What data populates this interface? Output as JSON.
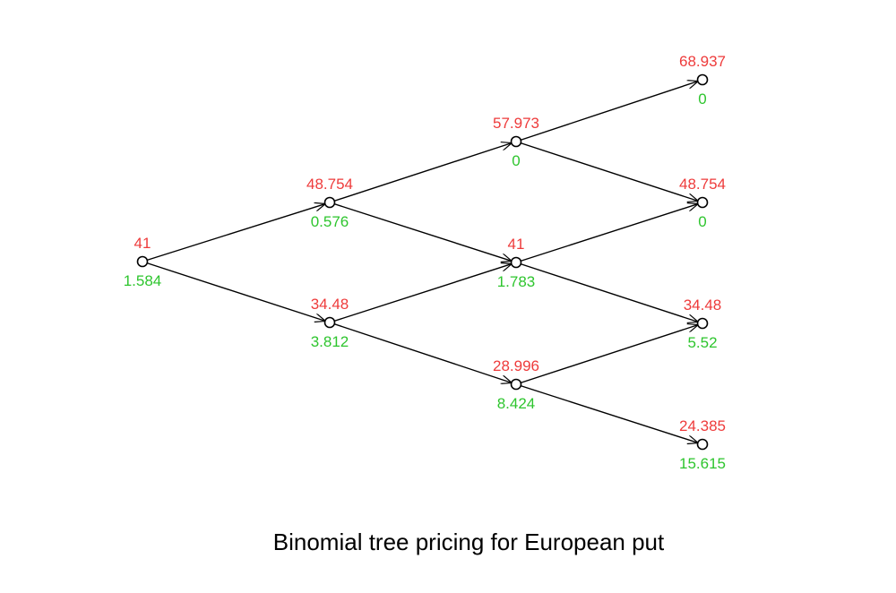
{
  "title": "Binomial tree pricing for European put",
  "colors": {
    "price": "#ee3b3b",
    "option_value": "#2ec52e",
    "line": "#000000",
    "node": "#000000"
  },
  "nodes": [
    {
      "id": "n0_0",
      "price": "41",
      "value": "1.584"
    },
    {
      "id": "n1_1",
      "price": "48.754",
      "value": "0.576"
    },
    {
      "id": "n1_0",
      "price": "34.48",
      "value": "3.812"
    },
    {
      "id": "n2_2",
      "price": "57.973",
      "value": "0"
    },
    {
      "id": "n2_1",
      "price": "41",
      "value": "1.783"
    },
    {
      "id": "n2_0",
      "price": "28.996",
      "value": "8.424"
    },
    {
      "id": "n3_3",
      "price": "68.937",
      "value": "0"
    },
    {
      "id": "n3_2",
      "price": "48.754",
      "value": "0"
    },
    {
      "id": "n3_1",
      "price": "34.48",
      "value": "5.52"
    },
    {
      "id": "n3_0",
      "price": "24.385",
      "value": "15.615"
    }
  ],
  "edges": [
    [
      "n0_0",
      "n1_1"
    ],
    [
      "n0_0",
      "n1_0"
    ],
    [
      "n1_1",
      "n2_2"
    ],
    [
      "n1_1",
      "n2_1"
    ],
    [
      "n1_0",
      "n2_1"
    ],
    [
      "n1_0",
      "n2_0"
    ],
    [
      "n2_2",
      "n3_3"
    ],
    [
      "n2_2",
      "n3_2"
    ],
    [
      "n2_1",
      "n3_2"
    ],
    [
      "n2_1",
      "n3_1"
    ],
    [
      "n2_0",
      "n3_1"
    ],
    [
      "n2_0",
      "n3_0"
    ]
  ]
}
